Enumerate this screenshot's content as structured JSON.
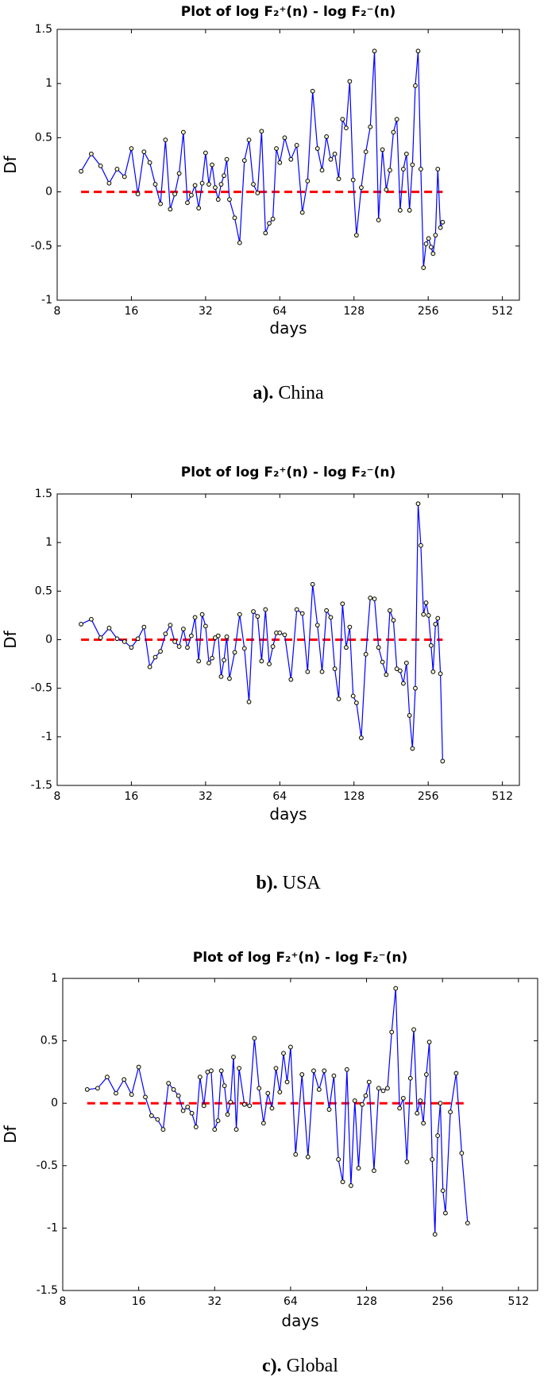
{
  "chart_data": [
    {
      "type": "line",
      "title": "Plot of log F₂⁺(n) - log F₂⁻(n)",
      "xlabel": "days",
      "ylabel": "Df",
      "caption_label": "a).",
      "caption": "China",
      "xscale": "log",
      "xlim": [
        8,
        600
      ],
      "xticks": [
        8,
        16,
        32,
        64,
        128,
        256,
        512
      ],
      "ylim": [
        -1,
        1.5
      ],
      "yticks": [
        -1,
        -0.5,
        0,
        0.5,
        1,
        1.5
      ],
      "color": "#0000ff",
      "marker_color": "#000000",
      "hline": {
        "y": 0,
        "x_range": [
          10,
          293
        ],
        "color": "#ff0000",
        "style": "dashed"
      },
      "x": [
        10,
        11,
        12,
        13,
        14,
        15,
        16,
        17,
        18,
        19,
        20,
        21,
        22,
        23,
        24,
        25,
        26,
        27,
        28,
        29,
        30,
        31,
        32,
        33,
        34,
        35,
        36,
        37,
        38,
        39,
        40,
        42,
        44,
        46,
        48,
        50,
        52,
        54,
        56,
        58,
        60,
        62,
        64,
        67,
        71,
        75,
        79,
        83,
        87,
        91,
        95,
        99,
        103,
        107,
        111,
        115,
        119,
        123,
        127,
        131,
        137,
        143,
        149,
        155,
        161,
        167,
        173,
        179,
        185,
        191,
        197,
        203,
        209,
        215,
        221,
        227,
        233,
        239,
        245,
        251,
        257,
        263,
        268,
        274,
        280,
        287,
        293
      ],
      "values": [
        0.19,
        0.35,
        0.24,
        0.08,
        0.21,
        0.14,
        0.4,
        -0.02,
        0.37,
        0.27,
        0.07,
        -0.11,
        0.48,
        -0.16,
        -0.02,
        0.17,
        0.55,
        -0.1,
        -0.03,
        0.06,
        -0.15,
        0.08,
        0.36,
        0.07,
        0.25,
        0.04,
        -0.07,
        0.07,
        0.15,
        0.3,
        -0.07,
        -0.24,
        -0.47,
        0.29,
        0.48,
        0.07,
        -0.01,
        0.56,
        -0.38,
        -0.29,
        -0.25,
        0.4,
        0.27,
        0.5,
        0.3,
        0.43,
        -0.19,
        0.1,
        0.93,
        0.4,
        0.2,
        0.51,
        0.3,
        0.35,
        0.12,
        0.67,
        0.59,
        1.02,
        0.11,
        -0.4,
        0.04,
        0.37,
        0.6,
        1.3,
        -0.26,
        0.39,
        0.02,
        0.2,
        0.55,
        0.67,
        -0.17,
        0.21,
        0.35,
        -0.17,
        0.25,
        0.98,
        1.3,
        0.21,
        -0.7,
        -0.48,
        -0.43,
        -0.51,
        -0.57,
        -0.4,
        0.21,
        -0.33,
        -0.28
      ]
    },
    {
      "type": "line",
      "title": "Plot of log F₂⁺(n) - log F₂⁻(n)",
      "xlabel": "days",
      "ylabel": "Df",
      "caption_label": "b).",
      "caption": "USA",
      "xscale": "log",
      "xlim": [
        8,
        600
      ],
      "xticks": [
        8,
        16,
        32,
        64,
        128,
        256,
        512
      ],
      "ylim": [
        -1.5,
        1.5
      ],
      "yticks": [
        -1.5,
        -1,
        -0.5,
        0,
        0.5,
        1,
        1.5
      ],
      "color": "#0000ff",
      "marker_color": "#000000",
      "hline": {
        "y": 0,
        "x_range": [
          10,
          293
        ],
        "color": "#ff0000",
        "style": "dashed"
      },
      "x": [
        10,
        11,
        12,
        13,
        14,
        15,
        16,
        17,
        18,
        19,
        20,
        21,
        22,
        23,
        24,
        25,
        26,
        27,
        28,
        29,
        30,
        31,
        32,
        33,
        34,
        35,
        36,
        37,
        38,
        39,
        40,
        42,
        44,
        46,
        48,
        50,
        52,
        54,
        56,
        58,
        60,
        62,
        64,
        67,
        71,
        75,
        79,
        83,
        87,
        91,
        95,
        99,
        103,
        107,
        111,
        115,
        119,
        123,
        127,
        131,
        137,
        143,
        149,
        155,
        161,
        167,
        173,
        179,
        185,
        191,
        197,
        203,
        209,
        215,
        221,
        227,
        233,
        239,
        245,
        251,
        257,
        263,
        268,
        274,
        280,
        287,
        293
      ],
      "values": [
        0.16,
        0.21,
        0.02,
        0.12,
        0.01,
        -0.02,
        -0.08,
        0.01,
        0.13,
        -0.28,
        -0.18,
        -0.12,
        0.06,
        0.15,
        -0.02,
        -0.07,
        0.11,
        -0.08,
        0.04,
        0.23,
        -0.22,
        0.26,
        0.14,
        -0.24,
        -0.19,
        0.02,
        0.04,
        -0.38,
        -0.21,
        0.03,
        -0.4,
        -0.13,
        0.26,
        -0.09,
        -0.64,
        0.29,
        0.24,
        -0.22,
        0.31,
        -0.25,
        -0.07,
        0.07,
        0.07,
        0.05,
        -0.41,
        0.31,
        0.27,
        -0.33,
        0.57,
        0.15,
        -0.33,
        0.3,
        0.23,
        -0.3,
        -0.61,
        0.37,
        -0.08,
        0.13,
        -0.58,
        -0.65,
        -1.01,
        -0.15,
        0.43,
        0.42,
        -0.08,
        -0.23,
        -0.36,
        0.3,
        0.2,
        -0.3,
        -0.32,
        -0.45,
        -0.24,
        -0.78,
        -1.12,
        -0.5,
        1.4,
        0.97,
        0.26,
        0.38,
        0.25,
        -0.06,
        -0.33,
        0.16,
        0.22,
        -0.35,
        -1.25
      ]
    },
    {
      "type": "line",
      "title": "Plot of log F₂⁺(n) - log F₂⁻(n)",
      "xlabel": "days",
      "ylabel": "Df",
      "caption_label": "c).",
      "caption": "Global",
      "xscale": "log",
      "xlim": [
        8,
        610
      ],
      "xticks": [
        8,
        16,
        32,
        64,
        128,
        256,
        512
      ],
      "ylim": [
        -1.5,
        1
      ],
      "yticks": [
        -1.5,
        -1,
        -0.5,
        0,
        0.5,
        1
      ],
      "color": "#0000ff",
      "marker_color": "#000000",
      "hline": {
        "y": 0,
        "x_range": [
          10,
          322
        ],
        "color": "#ff0000",
        "style": "dashed"
      },
      "x": [
        10,
        11,
        12,
        13,
        14,
        15,
        16,
        17,
        18,
        19,
        20,
        21,
        22,
        23,
        24,
        25,
        26,
        27,
        28,
        29,
        30,
        31,
        32,
        33,
        34,
        35,
        36,
        37,
        38,
        39,
        40,
        42,
        44,
        46,
        48,
        50,
        52,
        54,
        56,
        58,
        60,
        62,
        64,
        67,
        71,
        75,
        79,
        83,
        87,
        91,
        95,
        99,
        103,
        107,
        111,
        115,
        119,
        123,
        127,
        131,
        137,
        143,
        149,
        155,
        161,
        167,
        173,
        179,
        185,
        191,
        197,
        203,
        209,
        215,
        221,
        227,
        233,
        239,
        245,
        251,
        257,
        263,
        275,
        290,
        305,
        322
      ],
      "values": [
        0.11,
        0.12,
        0.21,
        0.08,
        0.19,
        0.07,
        0.29,
        0.05,
        -0.1,
        -0.13,
        -0.21,
        0.16,
        0.11,
        0.06,
        -0.06,
        -0.03,
        -0.08,
        -0.19,
        0.21,
        -0.02,
        0.25,
        0.26,
        -0.21,
        -0.14,
        0.26,
        0.14,
        -0.09,
        0.01,
        0.37,
        -0.21,
        0.28,
        -0.01,
        -0.02,
        0.52,
        0.12,
        -0.16,
        0.08,
        -0.04,
        0.28,
        0.09,
        0.4,
        0.17,
        0.45,
        -0.41,
        0.23,
        -0.43,
        0.26,
        0.11,
        0.26,
        -0.05,
        0.22,
        -0.45,
        -0.63,
        0.27,
        -0.66,
        0.02,
        -0.52,
        -0.01,
        0.06,
        0.17,
        -0.54,
        0.12,
        0.1,
        0.12,
        0.57,
        0.92,
        -0.04,
        0.04,
        -0.47,
        0.2,
        0.59,
        -0.08,
        0.02,
        -0.16,
        0.23,
        0.49,
        -0.45,
        -1.05,
        -0.26,
        0.0,
        -0.7,
        -0.88,
        -0.07,
        0.24,
        -0.4,
        -0.96
      ]
    }
  ]
}
